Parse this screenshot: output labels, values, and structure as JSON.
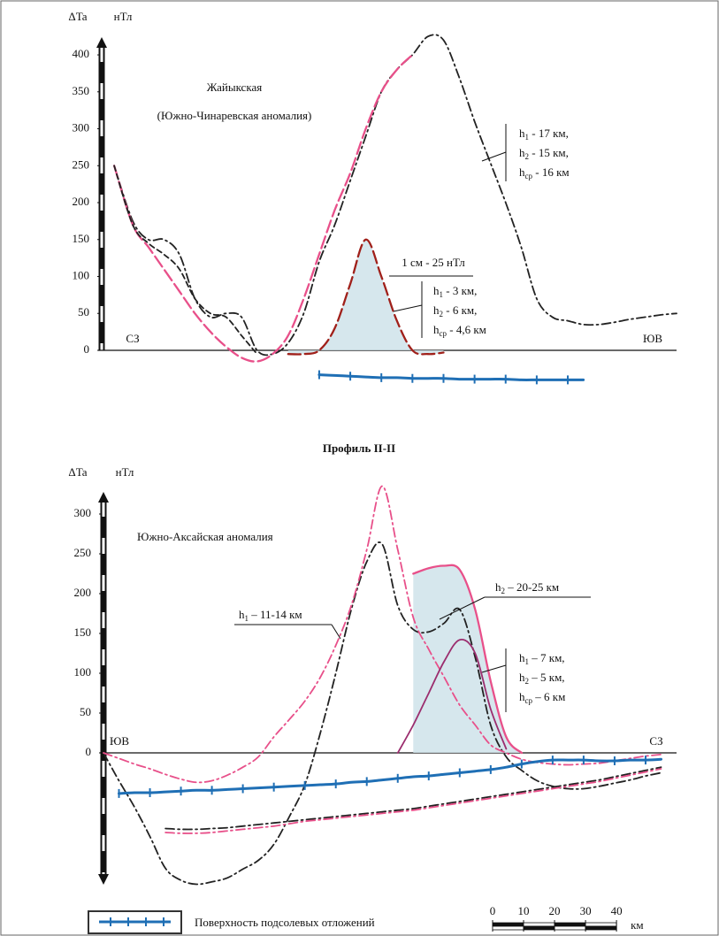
{
  "chart_data": [
    {
      "type": "line",
      "y_label": "ΔTa",
      "y_unit": "нТл",
      "start_label": "СЗ",
      "end_label": "ЮВ",
      "annotations": [
        "Жайыкская",
        "(Южно-Чинаревская аномалия)",
        "1 см - 25 нТл"
      ],
      "h_labels": [
        {
          "lines": [
            [
              "h",
              "1",
              " - 17 км,"
            ],
            [
              "h",
              "2",
              " - 15 км,"
            ],
            [
              "h",
              "ср",
              " - 16 км"
            ]
          ]
        },
        {
          "lines": [
            [
              "h",
              "1",
              " - 3 км,"
            ],
            [
              "h",
              "2",
              " - 6 км,"
            ],
            [
              "h",
              "ср",
              " - 4,6 км"
            ]
          ]
        }
      ],
      "x": [
        4,
        10,
        15,
        20,
        25,
        30,
        35,
        40,
        45,
        50,
        55,
        60,
        65,
        70,
        75,
        80,
        85,
        90,
        95,
        100,
        105,
        110,
        115,
        120,
        125,
        130,
        135,
        140,
        145,
        150,
        155,
        160,
        165,
        170,
        175,
        180,
        185
      ],
      "xlim": [
        0,
        185
      ],
      "ylim": [
        0,
        430
      ],
      "yticks": [
        0,
        50,
        100,
        150,
        200,
        250,
        300,
        350,
        400
      ],
      "series": [
        {
          "color": "#222222",
          "dash": "dash-dot",
          "values": [
            250,
            175,
            150,
            150,
            130,
            70,
            45,
            50,
            45,
            0,
            -5,
            10,
            50,
            120,
            170,
            230,
            290,
            350,
            380,
            400,
            425,
            420,
            370,
            310,
            255,
            200,
            140,
            70,
            45,
            40,
            35,
            35,
            38,
            42,
            45,
            48,
            50
          ]
        },
        {
          "color": "#e8508a",
          "dash": "long-dash",
          "values": [
            250,
            170,
            140,
            110,
            80,
            50,
            25,
            5,
            -10,
            -15,
            -5,
            20,
            70,
            130,
            190,
            240,
            300,
            350,
            380,
            400,
            null,
            null,
            null,
            null,
            null,
            null,
            null,
            null,
            null,
            null,
            null,
            null,
            null,
            null,
            null,
            null,
            null
          ]
        },
        {
          "color": "#222222",
          "dash": "dash",
          "values": [
            250,
            170,
            145,
            130,
            110,
            70,
            50,
            45,
            20,
            -5,
            null,
            null,
            null,
            null,
            null,
            null,
            null,
            null,
            null,
            null,
            null,
            null,
            null,
            null,
            null,
            null,
            null,
            null,
            null,
            null,
            null,
            null,
            null,
            null,
            null,
            null,
            null
          ]
        },
        {
          "color": "#a0201a",
          "dash": "long-dash",
          "shaded": true,
          "values": [
            null,
            null,
            null,
            null,
            null,
            null,
            null,
            null,
            null,
            null,
            null,
            -5,
            -5,
            0,
            30,
            90,
            150,
            100,
            40,
            0,
            -5,
            -3,
            null,
            null,
            null,
            null,
            null,
            null,
            null,
            null,
            null,
            null,
            null,
            null,
            null,
            null,
            null
          ]
        },
        {
          "color": "#1f6fb5",
          "dash": "solid",
          "markers": true,
          "values": [
            null,
            null,
            null,
            null,
            null,
            null,
            null,
            null,
            null,
            null,
            null,
            null,
            null,
            -33,
            -34,
            -35,
            -36,
            -37,
            -37,
            -38,
            -38,
            -38,
            -39,
            -39,
            -39,
            -39,
            -40,
            -40,
            -40,
            -40,
            -40,
            null,
            null,
            null,
            null,
            null,
            null
          ]
        }
      ]
    },
    {
      "type": "line",
      "title": "Профиль II-II",
      "y_label": "ΔTa",
      "y_unit": "нТл",
      "start_label": "ЮВ",
      "end_label": "СЗ",
      "annotations": [
        "Южно-Аксайская аномалия"
      ],
      "h_labels": [
        {
          "lines": [
            [
              "h",
              "1",
              " – 11-14 км"
            ]
          ]
        },
        {
          "lines": [
            [
              "h",
              "2",
              " – 20-25 км"
            ]
          ]
        },
        {
          "lines": [
            [
              "h",
              "1",
              " – 7 км,"
            ],
            [
              "h",
              "2",
              " – 5 км,"
            ],
            [
              "h",
              "ср",
              " – 6 км"
            ]
          ]
        }
      ],
      "x": [
        0,
        5,
        10,
        15,
        20,
        25,
        30,
        35,
        40,
        45,
        50,
        55,
        60,
        65,
        70,
        75,
        80,
        85,
        90,
        95,
        100,
        105,
        110,
        115,
        120,
        125,
        130,
        135,
        140,
        145,
        150,
        155,
        160,
        165,
        170,
        175,
        180,
        185
      ],
      "xlim": [
        0,
        185
      ],
      "ylim": [
        -170,
        330
      ],
      "yticks": [
        0,
        50,
        100,
        150,
        200,
        250,
        300
      ],
      "series": [
        {
          "color": "#222222",
          "dash": "dash-dot",
          "values": [
            0,
            -35,
            -68,
            -105,
            -145,
            -160,
            -165,
            -162,
            -157,
            -146,
            -135,
            -115,
            -80,
            -40,
            25,
            100,
            180,
            240,
            262,
            185,
            155,
            152,
            163,
            180,
            120,
            35,
            -5,
            -22,
            -35,
            -42,
            -45,
            -45,
            -42,
            -38,
            -34,
            -29,
            -25,
            null
          ]
        },
        {
          "color": "#e8508a",
          "dash": "dash-dot",
          "values": [
            0,
            -7,
            -14,
            -20,
            -27,
            -33,
            -37,
            -35,
            -28,
            -18,
            -5,
            20,
            42,
            65,
            95,
            135,
            185,
            255,
            335,
            255,
            170,
            130,
            95,
            60,
            35,
            10,
            0,
            -8,
            -12,
            -14,
            -15,
            -14,
            -13,
            -10,
            -7,
            -4,
            -2,
            null
          ]
        },
        {
          "color": "#e8508a",
          "dash": "solid",
          "shaded": true,
          "values": [
            null,
            null,
            null,
            null,
            null,
            null,
            null,
            null,
            null,
            null,
            null,
            null,
            null,
            null,
            null,
            null,
            null,
            null,
            null,
            null,
            225,
            232,
            235,
            230,
            180,
            90,
            20,
            0,
            null,
            null,
            null,
            null,
            null,
            null,
            null,
            null,
            null,
            null
          ]
        },
        {
          "color": "#9b2d6e",
          "dash": "solid",
          "values": [
            null,
            null,
            null,
            null,
            null,
            null,
            null,
            null,
            null,
            null,
            null,
            null,
            null,
            null,
            null,
            null,
            null,
            null,
            null,
            0,
            35,
            75,
            115,
            142,
            125,
            55,
            5,
            null,
            null,
            null,
            null,
            null,
            null,
            null,
            null,
            null,
            null,
            null
          ]
        },
        {
          "name": "Поверхность подсолевых отложений",
          "color": "#1f6fb5",
          "dash": "solid",
          "markers": true,
          "values": [
            null,
            -51,
            -50,
            -50,
            -49,
            -48,
            -47,
            -47,
            -46,
            -45,
            -44,
            -43,
            -42,
            -41,
            -40,
            -39,
            -37,
            -36,
            -34,
            -32,
            -30,
            -29,
            -27,
            -25,
            -23,
            -21,
            -18,
            -14,
            -11,
            -9,
            -9,
            -9,
            -10,
            -10,
            -9,
            -9,
            -8,
            null
          ]
        },
        {
          "color": "#222222",
          "dash": "dash-dot",
          "values": [
            null,
            null,
            null,
            null,
            -95,
            -96,
            -96,
            -95,
            -94,
            -92,
            -90,
            -88,
            -86,
            -84,
            -82,
            -80,
            -78,
            -76,
            -74,
            -72,
            -70,
            -67,
            -64,
            -61,
            -58,
            -55,
            -52,
            -49,
            -46,
            -43,
            -40,
            -37,
            -34,
            -30,
            -26,
            -22,
            -18,
            null
          ]
        },
        {
          "color": "#e8508a",
          "dash": "dash-dot",
          "values": [
            null,
            null,
            null,
            null,
            -100,
            -101,
            -101,
            -100,
            -98,
            -96,
            -94,
            -92,
            -89,
            -86,
            -84,
            -82,
            -80,
            -78,
            -76,
            -74,
            -72,
            -69,
            -66,
            -63,
            -60,
            -57,
            -54,
            -51,
            -48,
            -45,
            -42,
            -39,
            -36,
            -32,
            -28,
            -24,
            -20,
            null
          ]
        }
      ]
    }
  ],
  "scale_bar": {
    "ticks": [
      0,
      10,
      20,
      30,
      40
    ],
    "unit": "км"
  }
}
